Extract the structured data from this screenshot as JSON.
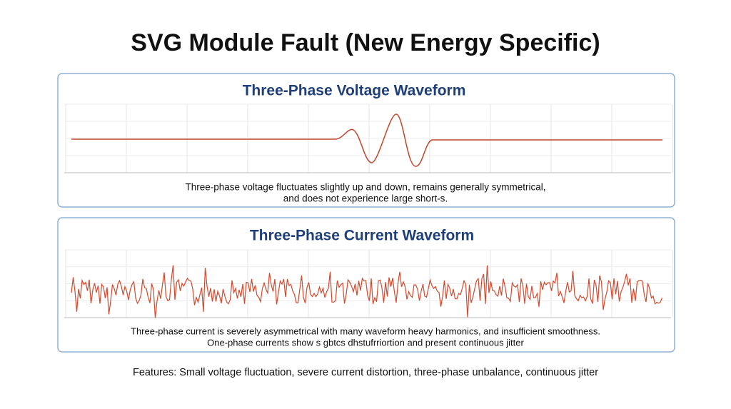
{
  "header": {
    "title": "SVG Module Fault (New Energy Specific)"
  },
  "panels": [
    {
      "title": "Three-Phase Voltage Waveform",
      "caption": [
        "Three-phase voltage fluctuates slightly up and down, remains generally symmetrical,",
        "and does not experience large short-s."
      ]
    },
    {
      "title": "Three-Phase Current Waveform",
      "caption": [
        "Three-phase current is severely asymmetrical with many waveform  heavy harmonics, and insufficient smoothness.",
        "One-phase currents show s gbtcs dhstufrriortion and present continuous jitter"
      ]
    }
  ],
  "footer": {
    "text": "Features: Small voltage fluctuation, severe current distortion, three-phase unbalance, continuous jitter"
  }
}
